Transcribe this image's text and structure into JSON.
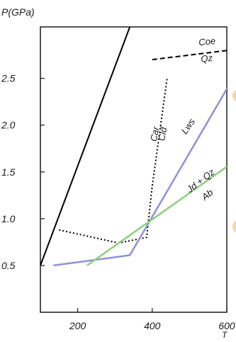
{
  "chart_data": {
    "type": "line",
    "title": "",
    "xlabel": "T",
    "ylabel": "P(GPa)",
    "xlim": [
      100,
      600
    ],
    "ylim": [
      0,
      3.05
    ],
    "x_ticks": [
      {
        "value": 200,
        "label": "200"
      },
      {
        "value": 400,
        "label": "400"
      },
      {
        "value": 600,
        "label": "600"
      }
    ],
    "y_ticks": [
      {
        "value": 0.5,
        "label": "0.5"
      },
      {
        "value": 1.0,
        "label": "1.0"
      },
      {
        "value": 1.5,
        "label": "1.5"
      },
      {
        "value": 2.0,
        "label": "2.0"
      },
      {
        "value": 2.5,
        "label": "2.5"
      }
    ],
    "grid": false,
    "series": [
      {
        "color": "#000000",
        "dash": "solid",
        "width": 2,
        "points": [
          [
            100,
            0.5
          ],
          [
            340,
            3.05
          ]
        ]
      },
      {
        "color": "#000000",
        "dash": "dashed",
        "width": 2,
        "points": [
          [
            400,
            2.7
          ],
          [
            605,
            2.8
          ]
        ]
      },
      {
        "color": "#000000",
        "dash": "dotted",
        "width": 2,
        "points": [
          [
            150,
            0.88
          ],
          [
            310,
            0.74
          ],
          [
            385,
            0.8
          ],
          [
            400,
            1.35
          ],
          [
            440,
            2.5
          ]
        ]
      },
      {
        "color": "#8c92d6",
        "dash": "solid",
        "width": 2.5,
        "points": [
          [
            135,
            0.5
          ],
          [
            340,
            0.61
          ],
          [
            605,
            2.42
          ]
        ]
      },
      {
        "color": "#8fcf7d",
        "dash": "solid",
        "width": 2.5,
        "points": [
          [
            225,
            0.5
          ],
          [
            605,
            1.57
          ]
        ]
      }
    ],
    "annotations": [
      {
        "text": "Coe",
        "x": 548,
        "y": 2.86,
        "rotate": -6
      },
      {
        "text": "Qz",
        "x": 547,
        "y": 2.68,
        "rotate": -6
      },
      {
        "text": "Car",
        "x": 415,
        "y": 1.9,
        "rotate": -80
      },
      {
        "text": "Cld",
        "x": 436,
        "y": 1.9,
        "rotate": -80
      },
      {
        "text": "Lws",
        "x": 503,
        "y": 1.97,
        "rotate": -55
      },
      {
        "text": "Jd + Qz",
        "x": 535,
        "y": 1.38,
        "rotate": -38
      },
      {
        "text": "Ab",
        "x": 553,
        "y": 1.23,
        "rotate": -38
      }
    ]
  }
}
